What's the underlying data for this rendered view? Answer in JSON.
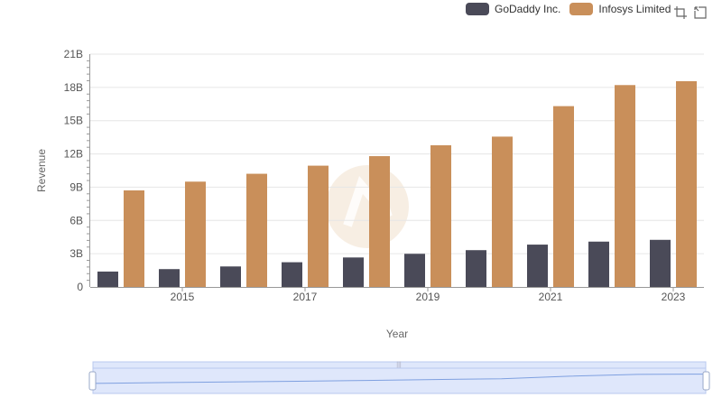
{
  "legend": {
    "series_a": "GoDaddy Inc.",
    "series_b": "Infosys Limited"
  },
  "toolbar": {
    "zoom_icon": "crosshair-zoom-icon",
    "reset_icon": "zoom-reset-icon"
  },
  "colors": {
    "godaddy": "#4a4a58",
    "infosys": "#c98f5a",
    "grid": "#e6e6e6",
    "slider_fill": "#dfe7fb",
    "slider_border": "#b8c8ef",
    "slider_line": "#7fa0e0",
    "watermark": "#f3e7d7"
  },
  "chart_data": {
    "type": "bar",
    "x": [
      2014,
      2015,
      2016,
      2017,
      2018,
      2019,
      2020,
      2021,
      2022,
      2023
    ],
    "xticks": [
      "2015",
      "2017",
      "2019",
      "2021",
      "2023"
    ],
    "series": [
      {
        "name": "GoDaddy Inc.",
        "values": [
          1.39,
          1.61,
          1.85,
          2.23,
          2.66,
          2.99,
          3.32,
          3.82,
          4.09,
          4.25
        ]
      },
      {
        "name": "Infosys Limited",
        "values": [
          8.71,
          9.5,
          10.21,
          10.94,
          11.8,
          12.78,
          13.56,
          16.31,
          18.21,
          18.56
        ]
      }
    ],
    "yticks": [
      "0",
      "3B",
      "6B",
      "9B",
      "12B",
      "15B",
      "18B",
      "21B"
    ],
    "ylim": [
      0,
      21
    ],
    "xlabel": "Year",
    "ylabel": "Revenue",
    "grid": true,
    "legend_position": "top-right"
  }
}
